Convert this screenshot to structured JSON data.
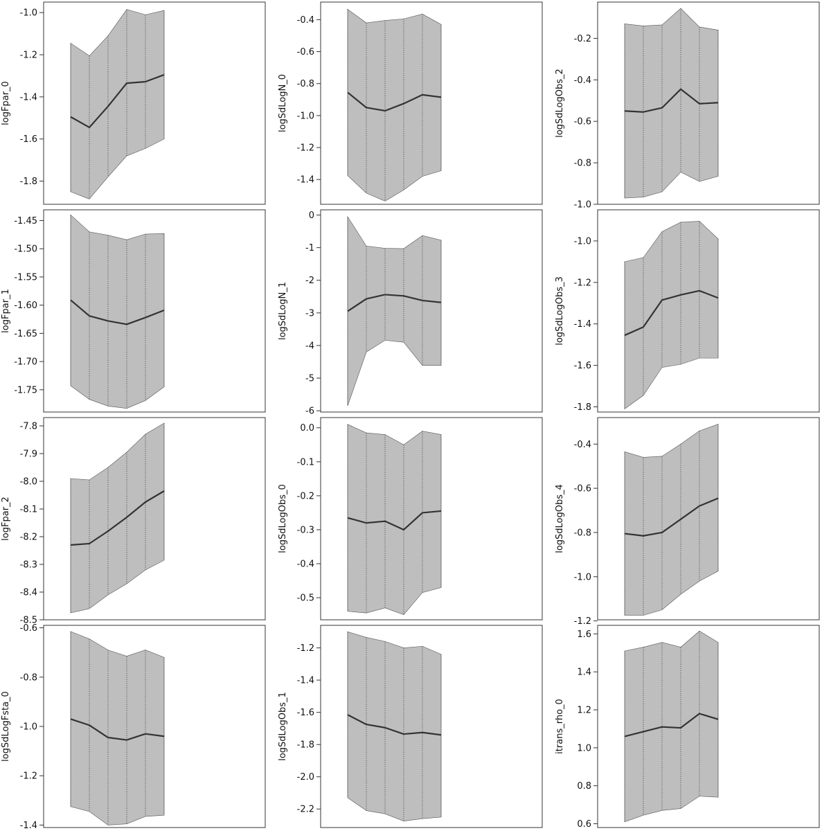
{
  "chart_data": [
    {
      "type": "area",
      "ylabel": "logFpar_0",
      "x": [
        1,
        2,
        3,
        4,
        5,
        6
      ],
      "mean": [
        -1.495,
        -1.545,
        -1.445,
        -1.335,
        -1.328,
        -1.295
      ],
      "lower": [
        -1.85,
        -1.885,
        -1.78,
        -1.68,
        -1.645,
        -1.6
      ],
      "upper": [
        -1.145,
        -1.205,
        -1.11,
        -0.985,
        -1.01,
        -0.99
      ],
      "ylim": [
        -1.91,
        -0.95
      ],
      "yticks": [
        -1.8,
        -1.6,
        -1.4,
        -1.2,
        -1.0
      ],
      "ytick_labels": [
        "-1.8",
        "-1.6",
        "-1.4",
        "-1.2",
        "-1.0"
      ]
    },
    {
      "type": "area",
      "ylabel": "logSdLogN_0",
      "x": [
        1,
        2,
        3,
        4,
        5,
        6
      ],
      "mean": [
        -0.855,
        -0.95,
        -0.97,
        -0.925,
        -0.87,
        -0.885
      ],
      "lower": [
        -1.375,
        -1.485,
        -1.535,
        -1.465,
        -1.38,
        -1.345
      ],
      "upper": [
        -0.335,
        -0.42,
        -0.405,
        -0.395,
        -0.365,
        -0.43
      ],
      "ylim": [
        -1.555,
        -0.29
      ],
      "yticks": [
        -1.4,
        -1.2,
        -1.0,
        -0.8,
        -0.6,
        -0.4
      ],
      "ytick_labels": [
        "-1.4",
        "-1.2",
        "-1.0",
        "-0.8",
        "-0.6",
        "-0.4"
      ]
    },
    {
      "type": "area",
      "ylabel": "logSdLogObs_2",
      "x": [
        1,
        2,
        3,
        4,
        5,
        6
      ],
      "mean": [
        -0.55,
        -0.555,
        -0.535,
        -0.445,
        -0.515,
        -0.51
      ],
      "lower": [
        -0.97,
        -0.965,
        -0.94,
        -0.845,
        -0.89,
        -0.865
      ],
      "upper": [
        -0.13,
        -0.14,
        -0.135,
        -0.055,
        -0.145,
        -0.16
      ],
      "ylim": [
        -1.0,
        -0.025
      ],
      "yticks": [
        -1.0,
        -0.8,
        -0.6,
        -0.4,
        -0.2
      ],
      "ytick_labels": [
        "-1.0",
        "-0.8",
        "-0.6",
        "-0.4",
        "-0.2"
      ]
    },
    {
      "type": "area",
      "ylabel": "logFpar_1",
      "x": [
        1,
        2,
        3,
        4,
        5,
        6
      ],
      "mean": [
        -1.591,
        -1.619,
        -1.628,
        -1.634,
        -1.622,
        -1.609
      ],
      "lower": [
        -1.743,
        -1.767,
        -1.779,
        -1.783,
        -1.769,
        -1.745
      ],
      "upper": [
        -1.44,
        -1.47,
        -1.476,
        -1.484,
        -1.474,
        -1.473
      ],
      "ylim": [
        -1.7895,
        -1.431
      ],
      "yticks": [
        -1.75,
        -1.7,
        -1.65,
        -1.6,
        -1.55,
        -1.5,
        -1.45
      ],
      "ytick_labels": [
        "-1.75",
        "-1.70",
        "-1.65",
        "-1.60",
        "-1.55",
        "-1.50",
        "-1.45"
      ]
    },
    {
      "type": "area",
      "ylabel": "logSdLogN_1",
      "x": [
        1,
        2,
        3,
        4,
        5,
        6
      ],
      "mean": [
        -2.95,
        -2.57,
        -2.44,
        -2.48,
        -2.62,
        -2.68
      ],
      "lower": [
        -5.85,
        -4.2,
        -3.84,
        -3.9,
        -4.61,
        -4.61
      ],
      "upper": [
        -0.05,
        -0.95,
        -1.02,
        -1.03,
        -0.63,
        -0.77
      ],
      "ylim": [
        -6.04,
        0.16
      ],
      "yticks": [
        -6,
        -5,
        -4,
        -3,
        -2,
        -1,
        0
      ],
      "ytick_labels": [
        "-6",
        "-5",
        "-4",
        "-3",
        "-2",
        "-1",
        "0"
      ]
    },
    {
      "type": "area",
      "ylabel": "logSdLogObs_3",
      "x": [
        1,
        2,
        3,
        4,
        5,
        6
      ],
      "mean": [
        -1.455,
        -1.415,
        -1.285,
        -1.26,
        -1.24,
        -1.275
      ],
      "lower": [
        -1.81,
        -1.745,
        -1.61,
        -1.595,
        -1.565,
        -1.565
      ],
      "upper": [
        -1.1,
        -1.08,
        -0.955,
        -0.91,
        -0.905,
        -0.99
      ],
      "ylim": [
        -1.825,
        -0.85
      ],
      "yticks": [
        -1.8,
        -1.6,
        -1.4,
        -1.2,
        -1.0
      ],
      "ytick_labels": [
        "-1.8",
        "-1.6",
        "-1.4",
        "-1.2",
        "-1.0"
      ]
    },
    {
      "type": "area",
      "ylabel": "logFpar_2",
      "x": [
        1,
        2,
        3,
        4,
        5,
        6
      ],
      "mean": [
        -8.23,
        -8.225,
        -8.18,
        -8.13,
        -8.075,
        -8.035
      ],
      "lower": [
        -8.475,
        -8.46,
        -8.41,
        -8.37,
        -8.32,
        -8.285
      ],
      "upper": [
        -7.99,
        -7.995,
        -7.95,
        -7.895,
        -7.83,
        -7.79
      ],
      "ylim": [
        -8.5,
        -7.77
      ],
      "yticks": [
        -8.5,
        -8.4,
        -8.3,
        -8.2,
        -8.1,
        -8.0,
        -7.9,
        -7.8
      ],
      "ytick_labels": [
        "-8.5",
        "-8.4",
        "-8.3",
        "-8.2",
        "-8.1",
        "-8.0",
        "-7.9",
        "-7.8"
      ]
    },
    {
      "type": "area",
      "ylabel": "logSdLogObs_0",
      "x": [
        1,
        2,
        3,
        4,
        5,
        6
      ],
      "mean": [
        -0.265,
        -0.28,
        -0.275,
        -0.3,
        -0.25,
        -0.245
      ],
      "lower": [
        -0.54,
        -0.545,
        -0.53,
        -0.55,
        -0.485,
        -0.47
      ],
      "upper": [
        0.01,
        -0.015,
        -0.02,
        -0.05,
        -0.01,
        -0.02
      ],
      "ylim": [
        -0.565,
        0.03
      ],
      "yticks": [
        -0.5,
        -0.4,
        -0.3,
        -0.2,
        -0.1,
        0.0
      ],
      "ytick_labels": [
        "-0.5",
        "-0.4",
        "-0.3",
        "-0.2",
        "-0.1",
        "0.0"
      ]
    },
    {
      "type": "area",
      "ylabel": "logSdLogObs_4",
      "x": [
        1,
        2,
        3,
        4,
        5,
        6
      ],
      "mean": [
        -0.805,
        -0.815,
        -0.8,
        -0.74,
        -0.68,
        -0.645
      ],
      "lower": [
        -1.175,
        -1.175,
        -1.15,
        -1.08,
        -1.02,
        -0.975
      ],
      "upper": [
        -0.435,
        -0.46,
        -0.455,
        -0.4,
        -0.34,
        -0.31
      ],
      "ylim": [
        -1.195,
        -0.28
      ],
      "yticks": [
        -1.2,
        -1.0,
        -0.8,
        -0.6,
        -0.4
      ],
      "ytick_labels": [
        "-1.2",
        "-1.0",
        "-0.8",
        "-0.6",
        "-0.4"
      ]
    },
    {
      "type": "area",
      "ylabel": "logSdLogFsta_0",
      "x": [
        1,
        2,
        3,
        4,
        5,
        6
      ],
      "mean": [
        -0.97,
        -0.995,
        -1.045,
        -1.055,
        -1.03,
        -1.04
      ],
      "lower": [
        -1.325,
        -1.345,
        -1.4,
        -1.395,
        -1.365,
        -1.36
      ],
      "upper": [
        -0.615,
        -0.645,
        -0.69,
        -0.715,
        -0.69,
        -0.72
      ],
      "ylim": [
        -1.41,
        -0.59
      ],
      "yticks": [
        -1.4,
        -1.2,
        -1.0,
        -0.8,
        -0.6
      ],
      "ytick_labels": [
        "-1.4",
        "-1.2",
        "-1.0",
        "-0.8",
        "-0.6"
      ]
    },
    {
      "type": "area",
      "ylabel": "logSdLogObs_1",
      "x": [
        1,
        2,
        3,
        4,
        5,
        6
      ],
      "mean": [
        -1.615,
        -1.675,
        -1.695,
        -1.735,
        -1.725,
        -1.74
      ],
      "lower": [
        -2.13,
        -2.21,
        -2.23,
        -2.275,
        -2.26,
        -2.25
      ],
      "upper": [
        -1.1,
        -1.135,
        -1.16,
        -1.2,
        -1.19,
        -1.24
      ],
      "ylim": [
        -2.315,
        -1.06
      ],
      "yticks": [
        -2.2,
        -2.0,
        -1.8,
        -1.6,
        -1.4,
        -1.2
      ],
      "ytick_labels": [
        "-2.2",
        "-2.0",
        "-1.8",
        "-1.6",
        "-1.4",
        "-1.2"
      ]
    },
    {
      "type": "area",
      "ylabel": "itrans_rho_0",
      "x": [
        1,
        2,
        3,
        4,
        5,
        6
      ],
      "mean": [
        1.06,
        1.085,
        1.11,
        1.105,
        1.18,
        1.15
      ],
      "lower": [
        0.61,
        0.645,
        0.67,
        0.68,
        0.745,
        0.74
      ],
      "upper": [
        1.51,
        1.53,
        1.555,
        1.53,
        1.615,
        1.555
      ],
      "ylim": [
        0.58,
        1.645
      ],
      "yticks": [
        0.6,
        0.8,
        1.0,
        1.2,
        1.4,
        1.6
      ],
      "ytick_labels": [
        "0.6",
        "0.8",
        "1.0",
        "1.2",
        "1.4",
        "1.6"
      ]
    }
  ]
}
